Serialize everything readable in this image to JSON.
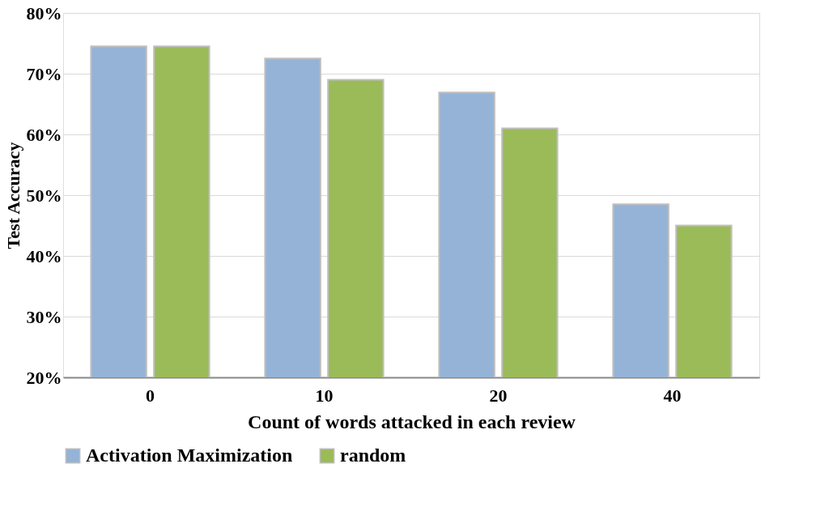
{
  "chart_data": {
    "type": "bar",
    "xlabel": "Count of words attacked in each review",
    "ylabel": "Test Accuracy",
    "categories": [
      "0",
      "10",
      "20",
      "40"
    ],
    "series": [
      {
        "name": "Activation Maximization",
        "color": "#95b3d7",
        "values": [
          74.5,
          72.5,
          66.9,
          48.5
        ]
      },
      {
        "name": "random",
        "color": "#9bbb59",
        "values": [
          74.5,
          69.0,
          61.0,
          45.0
        ]
      }
    ],
    "ylim": [
      20,
      80
    ],
    "yticks": [
      {
        "value": 20,
        "label": "20%"
      },
      {
        "value": 30,
        "label": "30%"
      },
      {
        "value": 40,
        "label": "40%"
      },
      {
        "value": 50,
        "label": "50%"
      },
      {
        "value": 60,
        "label": "60%"
      },
      {
        "value": 70,
        "label": "70%"
      },
      {
        "value": 80,
        "label": "80%"
      }
    ],
    "grid": "y",
    "legend": "bottom"
  }
}
